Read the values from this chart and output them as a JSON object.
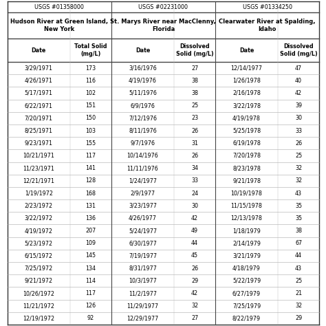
{
  "title_row1": [
    "USGS #01358000",
    "USGS #02231000",
    "USGS #01334250"
  ],
  "title_row2": [
    "Hudson River at Green Island,\nNew York",
    "St. Marys River near MacClenny,\nFlorida",
    "Clearwater River at Spalding,\nIdaho"
  ],
  "col_headers": [
    "Date",
    "Total Solid\n(mg/L)",
    "Date",
    "Dissolved\nSolid (mg/L)",
    "Date",
    "Dissolved\nSolid (mg/⁠L)"
  ],
  "col1_dates": [
    "3/29/1971",
    "4/26/1971",
    "5/17/1971",
    "6/22/1971",
    "7/20/1971",
    "8/25/1971",
    "9/23/1971",
    "10/21/1971",
    "11/23/1971",
    "12/21/1971",
    "1/19/1972",
    "2/23/1972",
    "3/22/1972",
    "4/19/1972",
    "5/23/1972",
    "6/15/1972",
    "7/25/1972",
    "9/21/1972",
    "10/26/1972",
    "11/21/1972",
    "12/19/1972"
  ],
  "col1_vals": [
    "173",
    "116",
    "102",
    "151",
    "150",
    "103",
    "155",
    "117",
    "141",
    "128",
    "168",
    "131",
    "136",
    "207",
    "109",
    "145",
    "134",
    "114",
    "117",
    "126",
    "92"
  ],
  "col2_dates": [
    "3/16/1976",
    "4/19/1976",
    "5/11/1976",
    "6/9/1976",
    "7/12/1976",
    "8/11/1976",
    "9/7/1976",
    "10/14/1976",
    "11/11/1976",
    "1/24/1977",
    "2/9/1977",
    "3/23/1977",
    "4/26/1977",
    "5/24/1977",
    "6/30/1977",
    "7/19/1977",
    "8/31/1977",
    "10/3/1977",
    "11/2/1977",
    "11/29/1977",
    "12/29/1977"
  ],
  "col2_vals": [
    "27",
    "38",
    "38",
    "25",
    "23",
    "26",
    "31",
    "26",
    "34",
    "33",
    "24",
    "30",
    "42",
    "49",
    "44",
    "45",
    "26",
    "29",
    "42",
    "32",
    "27"
  ],
  "col3_dates": [
    "12/14/1977",
    "1/26/1978",
    "2/16/1978",
    "3/22/1978",
    "4/19/1978",
    "5/25/1978",
    "6/19/1978",
    "7/20/1978",
    "8/23/1978",
    "9/21/1978",
    "10/19/1978",
    "11/15/1978",
    "12/13/1978",
    "1/18/1979",
    "2/14/1979",
    "3/21/1979",
    "4/18/1979",
    "5/22/1979",
    "6/27/1979",
    "7/25/1979",
    "8/22/1979"
  ],
  "col3_vals": [
    "47",
    "40",
    "42",
    "39",
    "30",
    "33",
    "26",
    "25",
    "32",
    "32",
    "43",
    "35",
    "35",
    "38",
    "67",
    "44",
    "43",
    "25",
    "21",
    "32",
    "29"
  ],
  "bg_white": "#ffffff",
  "line_color": "#888888",
  "thick_line_color": "#000000",
  "text_color": "#000000"
}
